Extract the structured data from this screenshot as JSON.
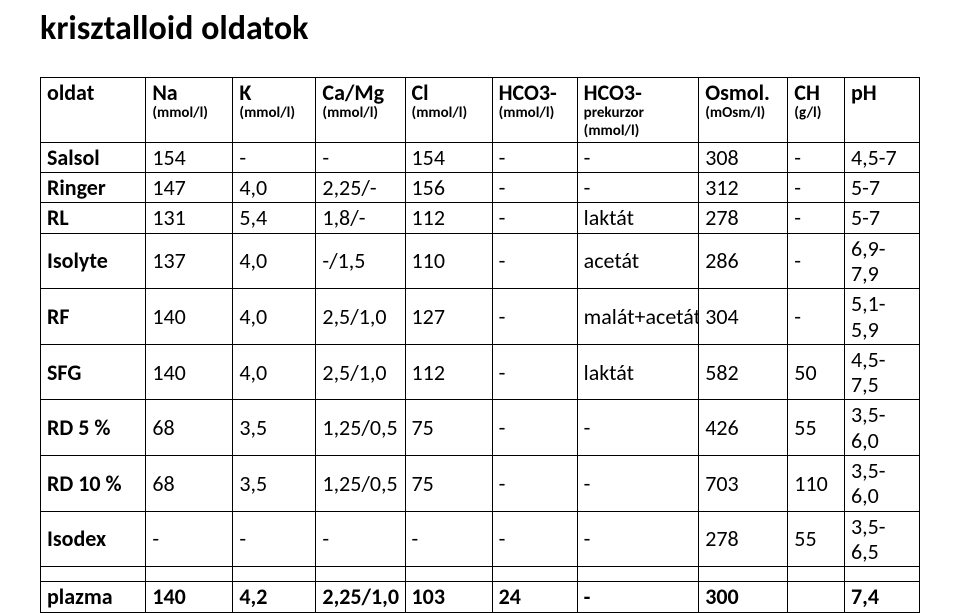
{
  "title": "krisztalloid oldatok",
  "table": {
    "type": "table",
    "background_color": "#ffffff",
    "border_color": "#000000",
    "header_fontsize_pt": 22,
    "unit_fontsize_pt": 15,
    "cell_fontsize_pt": 22,
    "columns": [
      {
        "label": "oldat",
        "unit": ""
      },
      {
        "label": "Na",
        "unit": "(mmol/l)"
      },
      {
        "label": "K",
        "unit": "(mmol/l)"
      },
      {
        "label": "Ca/Mg",
        "unit": "(mmol/l)"
      },
      {
        "label": "Cl",
        "unit": "(mmol/l)"
      },
      {
        "label": "HCO3-",
        "unit": "(mmol/l)"
      },
      {
        "label": "HCO3-",
        "unit": "prekurzor (mmol/l)"
      },
      {
        "label": "Osmol.",
        "unit": "(mOsm/l)"
      },
      {
        "label": "CH",
        "unit": "(g/l)"
      },
      {
        "label": "pH",
        "unit": ""
      }
    ],
    "rows": [
      [
        "Salsol",
        "154",
        "-",
        "-",
        "154",
        "-",
        "-",
        "308",
        "-",
        "4,5-7"
      ],
      [
        "Ringer",
        "147",
        "4,0",
        "2,25/-",
        "156",
        "-",
        "-",
        "312",
        "-",
        "5-7"
      ],
      [
        "RL",
        "131",
        "5,4",
        "1,8/-",
        "112",
        "-",
        "laktát",
        "278",
        "-",
        "5-7"
      ],
      [
        "Isolyte",
        "137",
        "4,0",
        "-/1,5",
        "110",
        "-",
        "acetát",
        "286",
        "-",
        "6,9-7,9"
      ],
      [
        "RF",
        "140",
        "4,0",
        "2,5/1,0",
        "127",
        "-",
        "malát+acetát",
        "304",
        "-",
        "5,1-5,9"
      ],
      [
        "SFG",
        "140",
        "4,0",
        "2,5/1,0",
        "112",
        "-",
        "laktát",
        "582",
        "50",
        "4,5-7,5"
      ],
      [
        "RD 5 %",
        "68",
        "3,5",
        "1,25/0,5",
        "75",
        "-",
        "-",
        "426",
        "55",
        "3,5-6,0"
      ],
      [
        "RD 10 %",
        "68",
        "3,5",
        "1,25/0,5",
        "75",
        "-",
        "-",
        "703",
        "110",
        "3,5-6,0"
      ],
      [
        "Isodex",
        "-",
        "-",
        "-",
        "-",
        "-",
        "-",
        "278",
        "55",
        "3,5-6,5"
      ]
    ],
    "plasma_row": [
      "plazma",
      "140",
      "4,2",
      "2,25/1,0",
      "103",
      "24",
      "-",
      "300",
      "",
      "7,4"
    ]
  }
}
